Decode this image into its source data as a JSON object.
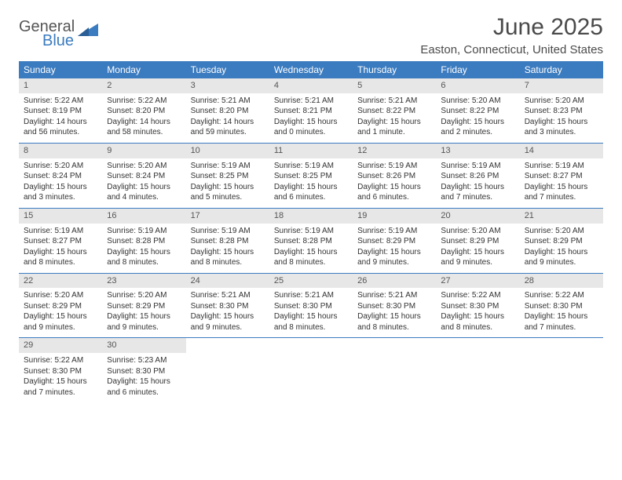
{
  "logo": {
    "text1": "General",
    "text2": "Blue"
  },
  "title": "June 2025",
  "location": "Easton, Connecticut, United States",
  "colors": {
    "header_bg": "#3b7bbf",
    "daynum_bg": "#e7e7e7",
    "text": "#333333",
    "border": "#3b7bbf"
  },
  "day_labels": [
    "Sunday",
    "Monday",
    "Tuesday",
    "Wednesday",
    "Thursday",
    "Friday",
    "Saturday"
  ],
  "weeks": [
    [
      {
        "n": "1",
        "sunrise": "Sunrise: 5:22 AM",
        "sunset": "Sunset: 8:19 PM",
        "daylight": "Daylight: 14 hours and 56 minutes."
      },
      {
        "n": "2",
        "sunrise": "Sunrise: 5:22 AM",
        "sunset": "Sunset: 8:20 PM",
        "daylight": "Daylight: 14 hours and 58 minutes."
      },
      {
        "n": "3",
        "sunrise": "Sunrise: 5:21 AM",
        "sunset": "Sunset: 8:20 PM",
        "daylight": "Daylight: 14 hours and 59 minutes."
      },
      {
        "n": "4",
        "sunrise": "Sunrise: 5:21 AM",
        "sunset": "Sunset: 8:21 PM",
        "daylight": "Daylight: 15 hours and 0 minutes."
      },
      {
        "n": "5",
        "sunrise": "Sunrise: 5:21 AM",
        "sunset": "Sunset: 8:22 PM",
        "daylight": "Daylight: 15 hours and 1 minute."
      },
      {
        "n": "6",
        "sunrise": "Sunrise: 5:20 AM",
        "sunset": "Sunset: 8:22 PM",
        "daylight": "Daylight: 15 hours and 2 minutes."
      },
      {
        "n": "7",
        "sunrise": "Sunrise: 5:20 AM",
        "sunset": "Sunset: 8:23 PM",
        "daylight": "Daylight: 15 hours and 3 minutes."
      }
    ],
    [
      {
        "n": "8",
        "sunrise": "Sunrise: 5:20 AM",
        "sunset": "Sunset: 8:24 PM",
        "daylight": "Daylight: 15 hours and 3 minutes."
      },
      {
        "n": "9",
        "sunrise": "Sunrise: 5:20 AM",
        "sunset": "Sunset: 8:24 PM",
        "daylight": "Daylight: 15 hours and 4 minutes."
      },
      {
        "n": "10",
        "sunrise": "Sunrise: 5:19 AM",
        "sunset": "Sunset: 8:25 PM",
        "daylight": "Daylight: 15 hours and 5 minutes."
      },
      {
        "n": "11",
        "sunrise": "Sunrise: 5:19 AM",
        "sunset": "Sunset: 8:25 PM",
        "daylight": "Daylight: 15 hours and 6 minutes."
      },
      {
        "n": "12",
        "sunrise": "Sunrise: 5:19 AM",
        "sunset": "Sunset: 8:26 PM",
        "daylight": "Daylight: 15 hours and 6 minutes."
      },
      {
        "n": "13",
        "sunrise": "Sunrise: 5:19 AM",
        "sunset": "Sunset: 8:26 PM",
        "daylight": "Daylight: 15 hours and 7 minutes."
      },
      {
        "n": "14",
        "sunrise": "Sunrise: 5:19 AM",
        "sunset": "Sunset: 8:27 PM",
        "daylight": "Daylight: 15 hours and 7 minutes."
      }
    ],
    [
      {
        "n": "15",
        "sunrise": "Sunrise: 5:19 AM",
        "sunset": "Sunset: 8:27 PM",
        "daylight": "Daylight: 15 hours and 8 minutes."
      },
      {
        "n": "16",
        "sunrise": "Sunrise: 5:19 AM",
        "sunset": "Sunset: 8:28 PM",
        "daylight": "Daylight: 15 hours and 8 minutes."
      },
      {
        "n": "17",
        "sunrise": "Sunrise: 5:19 AM",
        "sunset": "Sunset: 8:28 PM",
        "daylight": "Daylight: 15 hours and 8 minutes."
      },
      {
        "n": "18",
        "sunrise": "Sunrise: 5:19 AM",
        "sunset": "Sunset: 8:28 PM",
        "daylight": "Daylight: 15 hours and 8 minutes."
      },
      {
        "n": "19",
        "sunrise": "Sunrise: 5:19 AM",
        "sunset": "Sunset: 8:29 PM",
        "daylight": "Daylight: 15 hours and 9 minutes."
      },
      {
        "n": "20",
        "sunrise": "Sunrise: 5:20 AM",
        "sunset": "Sunset: 8:29 PM",
        "daylight": "Daylight: 15 hours and 9 minutes."
      },
      {
        "n": "21",
        "sunrise": "Sunrise: 5:20 AM",
        "sunset": "Sunset: 8:29 PM",
        "daylight": "Daylight: 15 hours and 9 minutes."
      }
    ],
    [
      {
        "n": "22",
        "sunrise": "Sunrise: 5:20 AM",
        "sunset": "Sunset: 8:29 PM",
        "daylight": "Daylight: 15 hours and 9 minutes."
      },
      {
        "n": "23",
        "sunrise": "Sunrise: 5:20 AM",
        "sunset": "Sunset: 8:29 PM",
        "daylight": "Daylight: 15 hours and 9 minutes."
      },
      {
        "n": "24",
        "sunrise": "Sunrise: 5:21 AM",
        "sunset": "Sunset: 8:30 PM",
        "daylight": "Daylight: 15 hours and 9 minutes."
      },
      {
        "n": "25",
        "sunrise": "Sunrise: 5:21 AM",
        "sunset": "Sunset: 8:30 PM",
        "daylight": "Daylight: 15 hours and 8 minutes."
      },
      {
        "n": "26",
        "sunrise": "Sunrise: 5:21 AM",
        "sunset": "Sunset: 8:30 PM",
        "daylight": "Daylight: 15 hours and 8 minutes."
      },
      {
        "n": "27",
        "sunrise": "Sunrise: 5:22 AM",
        "sunset": "Sunset: 8:30 PM",
        "daylight": "Daylight: 15 hours and 8 minutes."
      },
      {
        "n": "28",
        "sunrise": "Sunrise: 5:22 AM",
        "sunset": "Sunset: 8:30 PM",
        "daylight": "Daylight: 15 hours and 7 minutes."
      }
    ],
    [
      {
        "n": "29",
        "sunrise": "Sunrise: 5:22 AM",
        "sunset": "Sunset: 8:30 PM",
        "daylight": "Daylight: 15 hours and 7 minutes."
      },
      {
        "n": "30",
        "sunrise": "Sunrise: 5:23 AM",
        "sunset": "Sunset: 8:30 PM",
        "daylight": "Daylight: 15 hours and 6 minutes."
      },
      null,
      null,
      null,
      null,
      null
    ]
  ]
}
